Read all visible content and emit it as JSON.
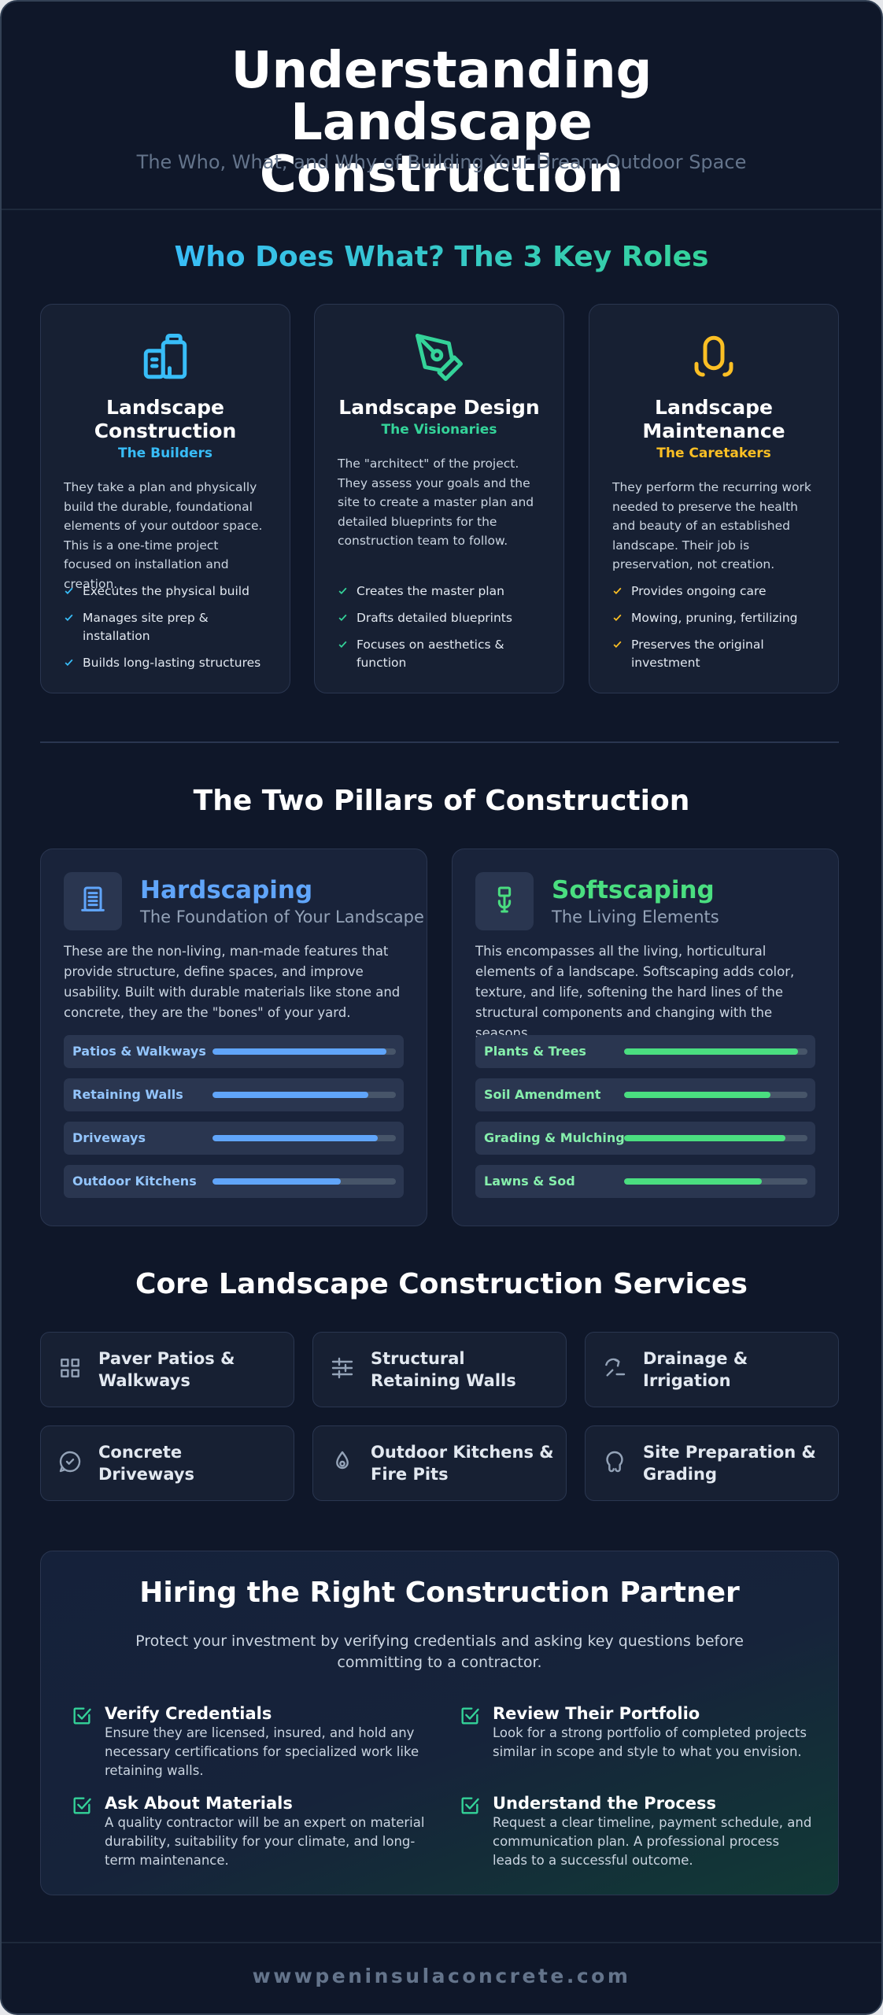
{
  "header": {
    "title": "Understanding Landscape Construction",
    "subtitle": "The Who, What, and Why of Building Your Dream Outdoor Space"
  },
  "roles": {
    "title": "Who Does What? The 3 Key Roles",
    "cards": [
      {
        "title": "Landscape Construction",
        "tagline": "The Builders",
        "description": "They take a plan and physically build the durable, foundational elements of your outdoor space. This is a one-time project focused on installation and creation.",
        "points": [
          "Executes the physical build",
          "Manages site prep & installation",
          "Builds long-lasting structures"
        ]
      },
      {
        "title": "Landscape Design",
        "tagline": "The Visionaries",
        "description": "The \"architect\" of the project. They assess your goals and the site to create a master plan and detailed blueprints for the construction team to follow.",
        "points": [
          "Creates the master plan",
          "Drafts detailed blueprints",
          "Focuses on aesthetics & function"
        ]
      },
      {
        "title": "Landscape Maintenance",
        "tagline": "The Caretakers",
        "description": "They perform the recurring work needed to preserve the health and beauty of an established landscape. Their job is preservation, not creation.",
        "points": [
          "Provides ongoing care",
          "Mowing, pruning, fertilizing",
          "Preserves the original investment"
        ]
      }
    ]
  },
  "pillars": {
    "title": "The Two Pillars of Construction",
    "cards": [
      {
        "title": "Hardscaping",
        "subtitle": "The Foundation of Your Landscape",
        "description": "These are the non-living, man-made features that provide structure, define spaces, and improve usability. Built with durable materials like stone and concrete, they are the \"bones\" of your yard.",
        "items": [
          {
            "label": "Patios & Walkways",
            "value": 95
          },
          {
            "label": "Retaining Walls",
            "value": 85
          },
          {
            "label": "Driveways",
            "value": 90
          },
          {
            "label": "Outdoor Kitchens",
            "value": 70
          }
        ]
      },
      {
        "title": "Softscaping",
        "subtitle": "The Living Elements",
        "description": "This encompasses all the living, horticultural elements of a landscape. Softscaping adds color, texture, and life, softening the hard lines of the structural components and changing with the seasons.",
        "items": [
          {
            "label": "Plants & Trees",
            "value": 95
          },
          {
            "label": "Soil Amendment",
            "value": 80
          },
          {
            "label": "Grading & Mulching",
            "value": 88
          },
          {
            "label": "Lawns & Sod",
            "value": 75
          }
        ]
      }
    ]
  },
  "services": {
    "title": "Core Landscape Construction Services",
    "items": [
      "Paver Patios & Walkways",
      "Structural Retaining Walls",
      "Drainage & Irrigation",
      "Concrete Driveways",
      "Outdoor Kitchens & Fire Pits",
      "Site Preparation & Grading"
    ]
  },
  "hiring": {
    "title": "Hiring the Right Construction Partner",
    "intro": "Protect your investment by verifying credentials and asking key questions before committing to a contractor.",
    "items": [
      {
        "title": "Verify Credentials",
        "text": "Ensure they are licensed, insured, and hold any necessary certifications for specialized work like retaining walls."
      },
      {
        "title": "Review Their Portfolio",
        "text": "Look for a strong portfolio of completed projects similar in scope and style to what you envision."
      },
      {
        "title": "Ask About Materials",
        "text": "A quality contractor will be an expert on material durability, suitability for your climate, and long-term maintenance."
      },
      {
        "title": "Understand the Process",
        "text": "Request a clear timeline, payment schedule, and communication plan. A professional process leads to a successful outcome."
      }
    ]
  },
  "footer": {
    "text": "wwwpeninsulaconcrete.com"
  }
}
